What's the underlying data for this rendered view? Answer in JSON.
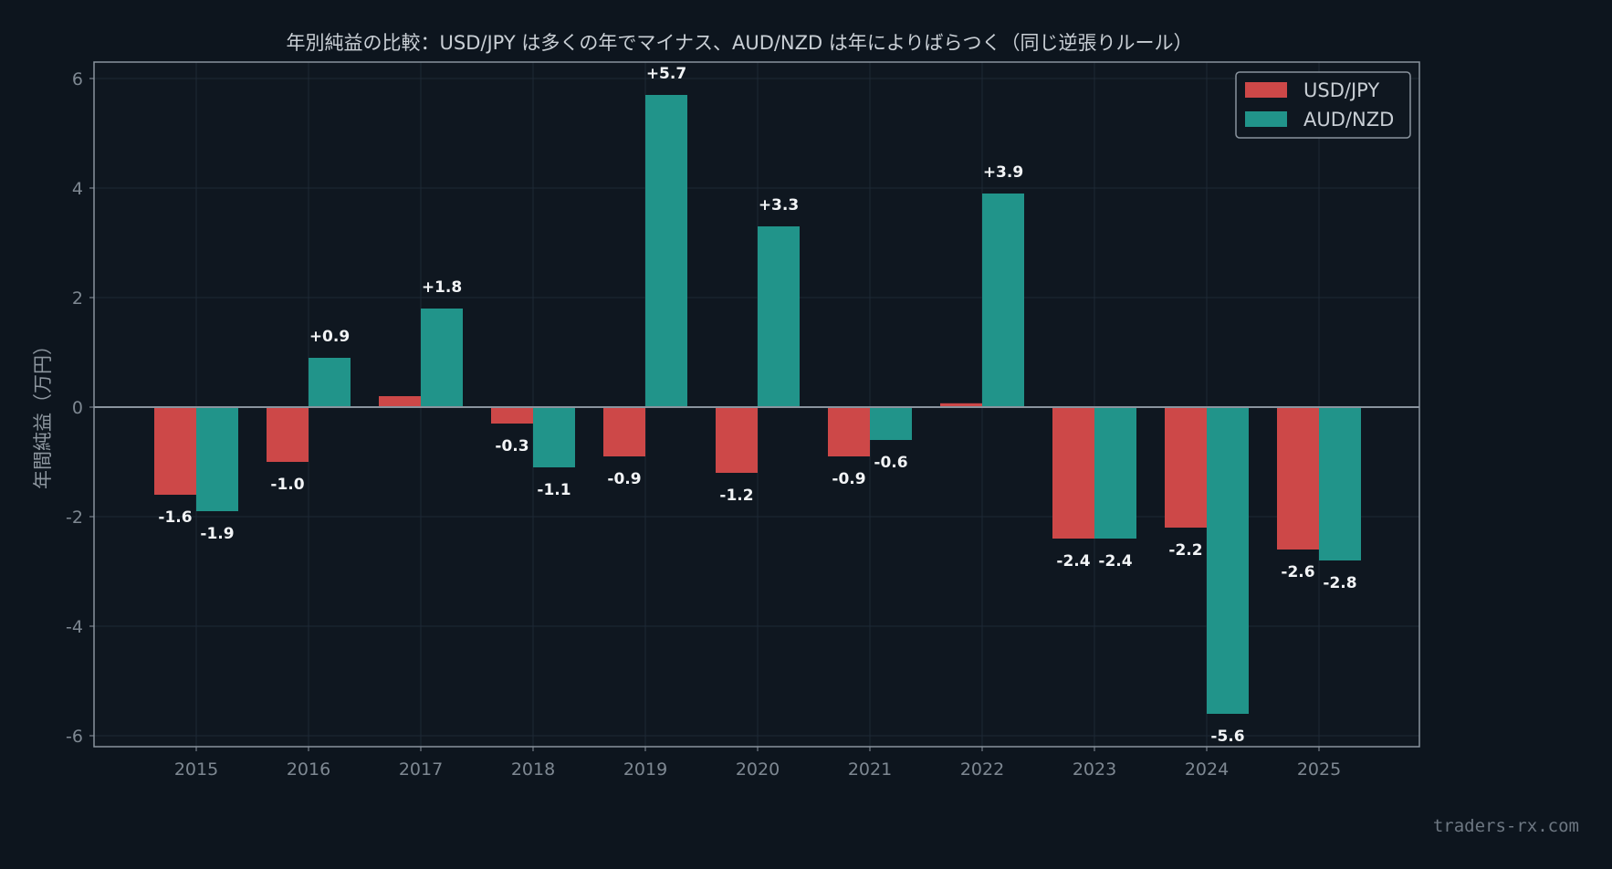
{
  "chart_data": {
    "type": "bar",
    "title": "年別純益の比較：USD/JPY は多くの年でマイナス、AUD/NZD は年によりばらつく（同じ逆張りルール）",
    "xlabel": "",
    "ylabel": "年間純益（万円）",
    "categories": [
      "2015",
      "2016",
      "2017",
      "2018",
      "2019",
      "2020",
      "2021",
      "2022",
      "2023",
      "2024",
      "2025"
    ],
    "series": [
      {
        "name": "USD/JPY",
        "color": "#cd4848",
        "values": [
          -1.6,
          -1.0,
          0.2,
          -0.3,
          -0.9,
          -1.2,
          -0.9,
          0.07,
          -2.4,
          -2.2,
          -2.6
        ],
        "labels": [
          "-1.6",
          "-1.0",
          "",
          "-0.3",
          "-0.9",
          "-1.2",
          "-0.9",
          "",
          "-2.4",
          "-2.2",
          "-2.6"
        ]
      },
      {
        "name": "AUD/NZD",
        "color": "#21948a",
        "values": [
          -1.9,
          0.9,
          1.8,
          -1.1,
          5.7,
          3.3,
          -0.6,
          3.9,
          -2.4,
          -5.6,
          -2.8
        ],
        "labels": [
          "-1.9",
          "+0.9",
          "+1.8",
          "-1.1",
          "+5.7",
          "+3.3",
          "-0.6",
          "+3.9",
          "-2.4",
          "-5.6",
          "-2.8"
        ]
      }
    ],
    "ylim": [
      -6.2,
      6.3
    ],
    "yticks": [
      6,
      4,
      2,
      0,
      -2,
      -4,
      -6
    ],
    "grid": true,
    "legend_position": "top-right"
  },
  "watermark": "traders-rx.com",
  "colors": {
    "background": "#0d151e",
    "plot_background": "#0f1720",
    "frame": "#8a949e",
    "grid": "#1d2935",
    "tick_text": "#7e8892",
    "title_text": "#c9cfd5",
    "label_text": "#f2f4f6",
    "zero_line": "#8a949e"
  }
}
